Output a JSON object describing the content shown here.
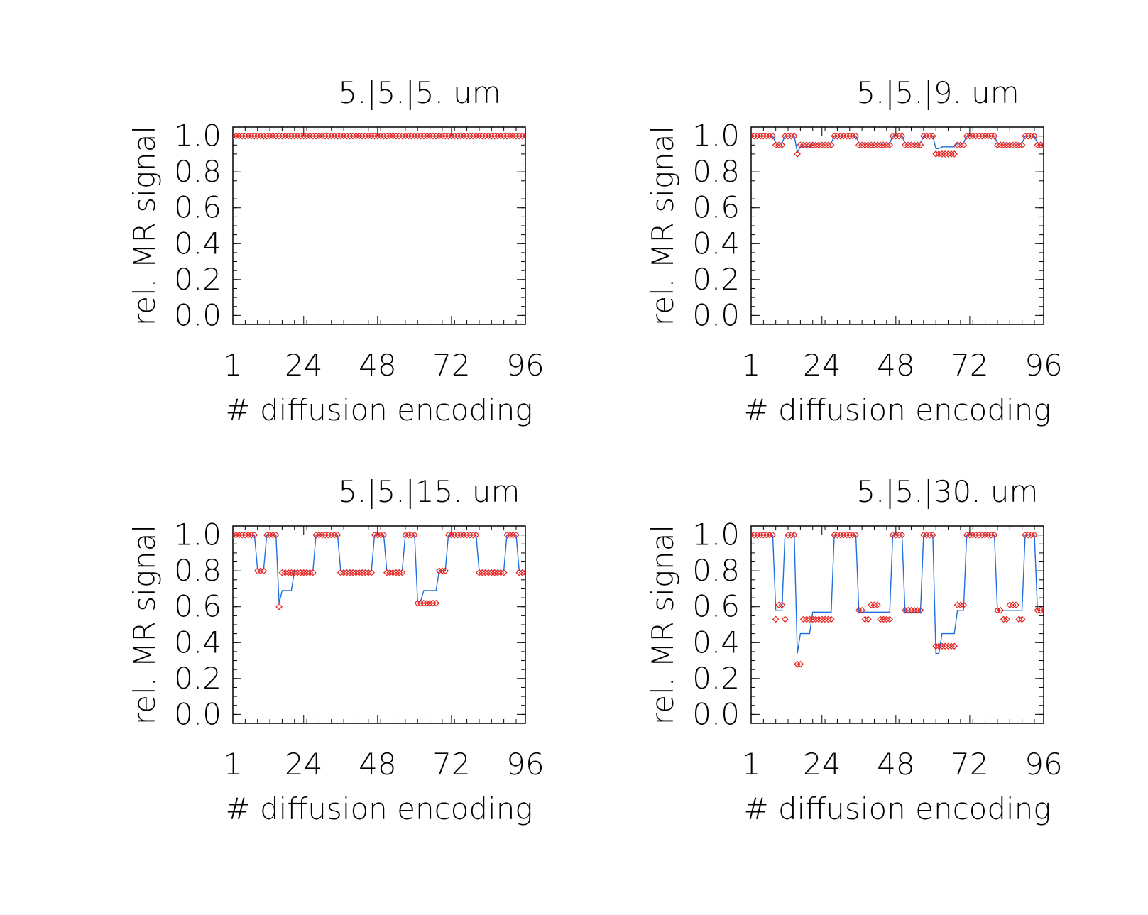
{
  "figure": {
    "colors": {
      "model_line": "#1f6fe0",
      "measured_marker": "#e8201c",
      "axes": "#000000"
    }
  },
  "chart_data": [
    {
      "type": "line",
      "title": "5.|5.|5. um",
      "xlabel": "# diffusion encoding",
      "ylabel": "rel. MR signal",
      "xlim": [
        1,
        96
      ],
      "ylim": [
        -0.05,
        1.05
      ],
      "xticks": [
        "1",
        "24",
        "48",
        "72",
        "96"
      ],
      "yticks": [
        "0.0",
        "0.2",
        "0.4",
        "0.6",
        "0.8",
        "1.0"
      ],
      "grid": false,
      "series": [
        {
          "kind": "line",
          "pattern": [
            [
              1,
              96,
              1.0
            ]
          ]
        },
        {
          "kind": "marker",
          "pattern": [
            [
              1,
              96,
              1.0
            ]
          ]
        }
      ]
    },
    {
      "type": "line",
      "title": "5.|5.|9. um",
      "xlabel": "# diffusion encoding",
      "ylabel": "rel. MR signal",
      "xlim": [
        1,
        96
      ],
      "ylim": [
        -0.05,
        1.05
      ],
      "xticks": [
        "1",
        "24",
        "48",
        "72",
        "96"
      ],
      "yticks": [
        "0.0",
        "0.2",
        "0.4",
        "0.6",
        "0.8",
        "1.0"
      ],
      "grid": false,
      "series": [
        {
          "kind": "line",
          "pattern": [
            [
              1,
              8,
              1.0
            ],
            [
              9,
              11,
              0.96
            ],
            [
              12,
              15,
              1.0
            ],
            [
              16,
              16,
              0.91
            ],
            [
              17,
              20,
              0.94
            ],
            [
              21,
              27,
              0.96
            ],
            [
              28,
              35,
              1.0
            ],
            [
              36,
              46,
              0.96
            ],
            [
              47,
              50,
              1.0
            ],
            [
              51,
              56,
              0.96
            ],
            [
              57,
              60,
              1.0
            ],
            [
              61,
              62,
              0.93
            ],
            [
              63,
              67,
              0.94
            ],
            [
              68,
              70,
              0.96
            ],
            [
              71,
              80,
              1.0
            ],
            [
              81,
              89,
              0.96
            ],
            [
              90,
              93,
              1.0
            ],
            [
              94,
              96,
              0.96
            ]
          ]
        },
        {
          "kind": "marker",
          "pattern": [
            [
              1,
              8,
              1.0
            ],
            [
              9,
              11,
              0.95
            ],
            [
              12,
              15,
              1.0
            ],
            [
              16,
              16,
              0.9
            ],
            [
              17,
              27,
              0.95
            ],
            [
              28,
              35,
              1.0
            ],
            [
              36,
              46,
              0.95
            ],
            [
              47,
              50,
              1.0
            ],
            [
              51,
              56,
              0.95
            ],
            [
              57,
              60,
              1.0
            ],
            [
              61,
              67,
              0.9
            ],
            [
              68,
              70,
              0.95
            ],
            [
              71,
              80,
              1.0
            ],
            [
              81,
              89,
              0.95
            ],
            [
              90,
              93,
              1.0
            ],
            [
              94,
              96,
              0.95
            ]
          ]
        }
      ]
    },
    {
      "type": "line",
      "title": "5.|5.|15. um",
      "xlabel": "# diffusion encoding",
      "ylabel": "rel. MR signal",
      "xlim": [
        1,
        96
      ],
      "ylim": [
        -0.05,
        1.05
      ],
      "xticks": [
        "1",
        "24",
        "48",
        "72",
        "96"
      ],
      "yticks": [
        "0.0",
        "0.2",
        "0.4",
        "0.6",
        "0.8",
        "1.0"
      ],
      "grid": false,
      "series": [
        {
          "kind": "line",
          "pattern": [
            [
              1,
              8,
              1.0
            ],
            [
              9,
              11,
              0.81
            ],
            [
              12,
              15,
              1.0
            ],
            [
              16,
              16,
              0.62
            ],
            [
              17,
              20,
              0.69
            ],
            [
              21,
              27,
              0.8
            ],
            [
              28,
              35,
              1.0
            ],
            [
              36,
              46,
              0.8
            ],
            [
              47,
              50,
              1.0
            ],
            [
              51,
              56,
              0.8
            ],
            [
              57,
              60,
              1.0
            ],
            [
              61,
              62,
              0.63
            ],
            [
              63,
              67,
              0.69
            ],
            [
              68,
              70,
              0.8
            ],
            [
              71,
              80,
              1.0
            ],
            [
              81,
              89,
              0.8
            ],
            [
              90,
              93,
              1.0
            ],
            [
              94,
              96,
              0.8
            ]
          ]
        },
        {
          "kind": "marker",
          "pattern": [
            [
              1,
              8,
              1.0
            ],
            [
              9,
              11,
              0.8
            ],
            [
              12,
              15,
              1.0
            ],
            [
              16,
              16,
              0.6
            ],
            [
              17,
              27,
              0.79
            ],
            [
              28,
              35,
              1.0
            ],
            [
              36,
              46,
              0.79
            ],
            [
              47,
              50,
              1.0
            ],
            [
              51,
              56,
              0.79
            ],
            [
              57,
              60,
              1.0
            ],
            [
              61,
              67,
              0.62
            ],
            [
              68,
              70,
              0.8
            ],
            [
              71,
              80,
              1.0
            ],
            [
              81,
              89,
              0.79
            ],
            [
              90,
              93,
              1.0
            ],
            [
              94,
              96,
              0.79
            ]
          ]
        }
      ]
    },
    {
      "type": "line",
      "title": "5.|5.|30. um",
      "xlabel": "# diffusion encoding",
      "ylabel": "rel. MR signal",
      "xlim": [
        1,
        96
      ],
      "ylim": [
        -0.05,
        1.05
      ],
      "xticks": [
        "1",
        "24",
        "48",
        "72",
        "96"
      ],
      "yticks": [
        "0.0",
        "0.2",
        "0.4",
        "0.6",
        "0.8",
        "1.0"
      ],
      "grid": false,
      "series": [
        {
          "kind": "line",
          "pattern": [
            [
              1,
              8,
              1.0
            ],
            [
              9,
              11,
              0.58
            ],
            [
              12,
              15,
              1.0
            ],
            [
              16,
              16,
              0.34
            ],
            [
              17,
              20,
              0.45
            ],
            [
              21,
              27,
              0.57
            ],
            [
              28,
              35,
              1.0
            ],
            [
              36,
              46,
              0.57
            ],
            [
              47,
              50,
              1.0
            ],
            [
              51,
              56,
              0.57
            ],
            [
              57,
              60,
              1.0
            ],
            [
              61,
              62,
              0.34
            ],
            [
              63,
              67,
              0.45
            ],
            [
              68,
              70,
              0.58
            ],
            [
              71,
              80,
              1.0
            ],
            [
              81,
              89,
              0.58
            ],
            [
              90,
              93,
              1.0
            ],
            [
              94,
              96,
              0.58
            ]
          ]
        },
        {
          "kind": "marker",
          "pattern": [
            [
              1,
              8,
              1.0
            ],
            [
              9,
              9,
              0.53
            ],
            [
              10,
              11,
              0.61
            ],
            [
              12,
              12,
              0.53
            ],
            [
              13,
              15,
              1.0
            ],
            [
              16,
              17,
              0.28
            ],
            [
              18,
              27,
              0.53
            ],
            [
              28,
              35,
              1.0
            ],
            [
              36,
              37,
              0.58
            ],
            [
              38,
              39,
              0.53
            ],
            [
              40,
              42,
              0.61
            ],
            [
              43,
              46,
              0.53
            ],
            [
              47,
              50,
              1.0
            ],
            [
              51,
              56,
              0.58
            ],
            [
              57,
              60,
              1.0
            ],
            [
              61,
              67,
              0.38
            ],
            [
              68,
              70,
              0.61
            ],
            [
              71,
              80,
              1.0
            ],
            [
              81,
              82,
              0.58
            ],
            [
              83,
              84,
              0.53
            ],
            [
              85,
              87,
              0.61
            ],
            [
              88,
              89,
              0.53
            ],
            [
              90,
              93,
              1.0
            ],
            [
              94,
              96,
              0.58
            ]
          ]
        }
      ]
    }
  ]
}
